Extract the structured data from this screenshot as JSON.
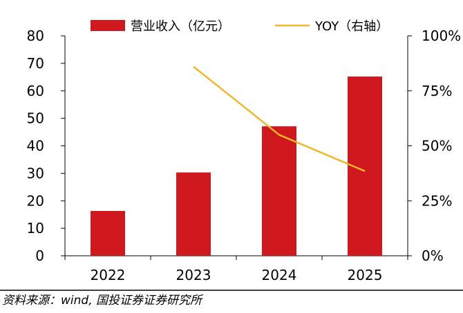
{
  "chart_data": {
    "type": "bar",
    "categories": [
      "2022",
      "2023",
      "2024",
      "2025"
    ],
    "series": [
      {
        "name": "营业收入（亿元）",
        "type": "bar",
        "axis": "left",
        "values": [
          16.3,
          30.3,
          47.1,
          65.2
        ]
      },
      {
        "name": "YOY（右轴）",
        "type": "line",
        "axis": "right",
        "values": [
          null,
          0.86,
          0.55,
          0.385
        ]
      }
    ],
    "ylim": [
      0,
      80
    ],
    "y_ticks": [
      "0",
      "10",
      "20",
      "30",
      "40",
      "50",
      "60",
      "70",
      "80"
    ],
    "y2lim": [
      0,
      1
    ],
    "y2_ticks": [
      "0%",
      "25%",
      "50%",
      "75%",
      "100%"
    ],
    "legend_position": "top",
    "grid": false,
    "colors": {
      "bar": "#D0181F",
      "line": "#EFB82B",
      "axis": "#000000"
    }
  },
  "source": "资料来源：wind, 国投证券证券研究所"
}
